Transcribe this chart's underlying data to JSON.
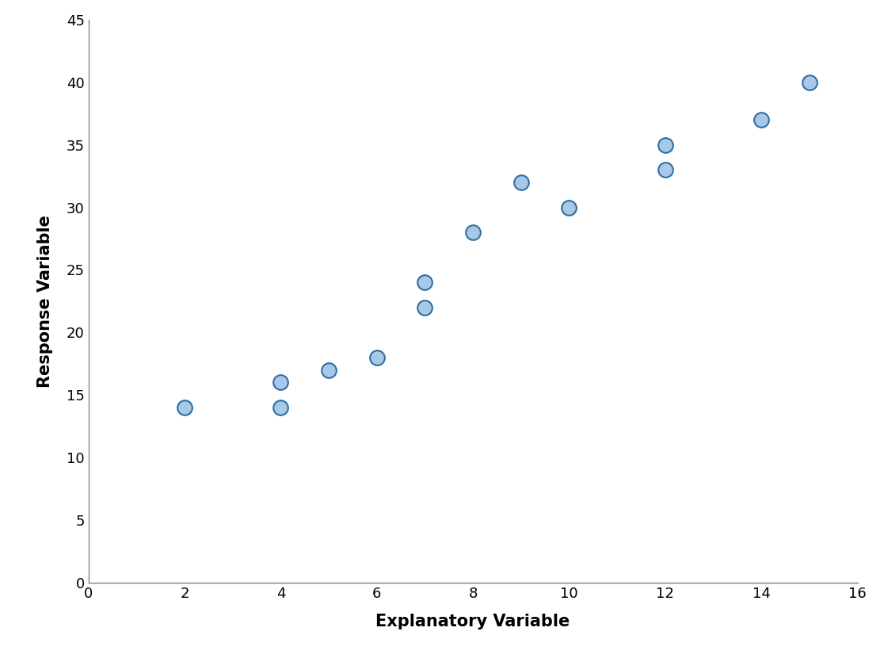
{
  "x": [
    2,
    4,
    4,
    5,
    6,
    7,
    7,
    8,
    9,
    10,
    12,
    12,
    14,
    15
  ],
  "y": [
    14,
    14,
    16,
    17,
    18,
    22,
    24,
    28,
    32,
    30,
    33,
    35,
    37,
    40
  ],
  "xlabel": "Explanatory Variable",
  "ylabel": "Response Variable",
  "xlim": [
    0,
    16
  ],
  "ylim": [
    0,
    45
  ],
  "xticks": [
    0,
    2,
    4,
    6,
    8,
    10,
    12,
    14,
    16
  ],
  "yticks": [
    0,
    5,
    10,
    15,
    20,
    25,
    30,
    35,
    40,
    45
  ],
  "marker_color": "#a8c8e8",
  "marker_edge_color": "#2e6fa3",
  "marker_size": 180,
  "marker_linewidth": 1.5,
  "xlabel_fontsize": 15,
  "ylabel_fontsize": 15,
  "tick_fontsize": 13,
  "background_color": "#ffffff",
  "spine_color": "#808080"
}
